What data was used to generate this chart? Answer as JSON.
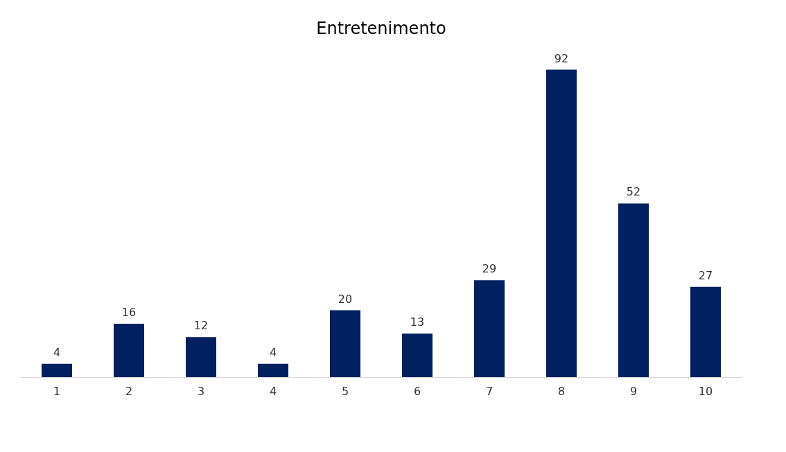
{
  "chart_data": {
    "type": "bar",
    "title": "Entretenimento",
    "categories": [
      "1",
      "2",
      "3",
      "4",
      "5",
      "6",
      "7",
      "8",
      "9",
      "10"
    ],
    "values": [
      4,
      16,
      12,
      4,
      20,
      13,
      29,
      92,
      52,
      27
    ],
    "color": "#002060",
    "data_labels": true
  }
}
